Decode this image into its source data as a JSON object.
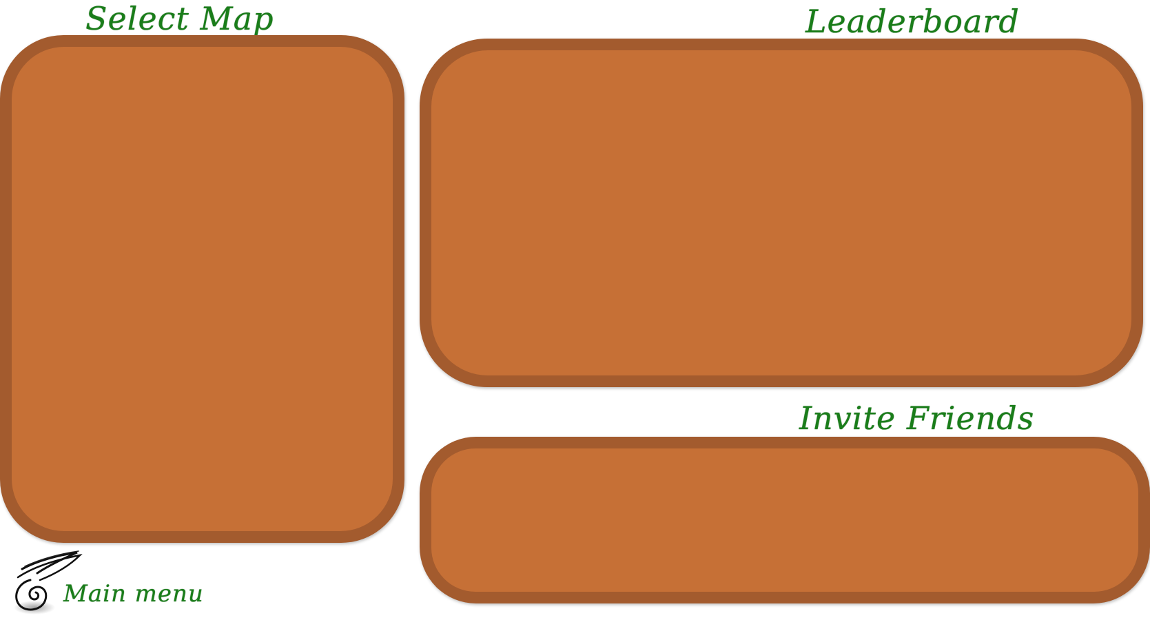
{
  "select_map": {
    "title": "Select Map"
  },
  "leaderboard": {
    "title": "Leaderboard"
  },
  "invite_friends": {
    "title": "Invite Friends"
  },
  "main_menu": {
    "label": "Main menu",
    "icon": "back-arrow-icon"
  },
  "colors": {
    "title_text": "#1a7d1a",
    "panel_border": "#a35b2e",
    "panel_fill": "#c67036",
    "background": "#ffffff"
  }
}
